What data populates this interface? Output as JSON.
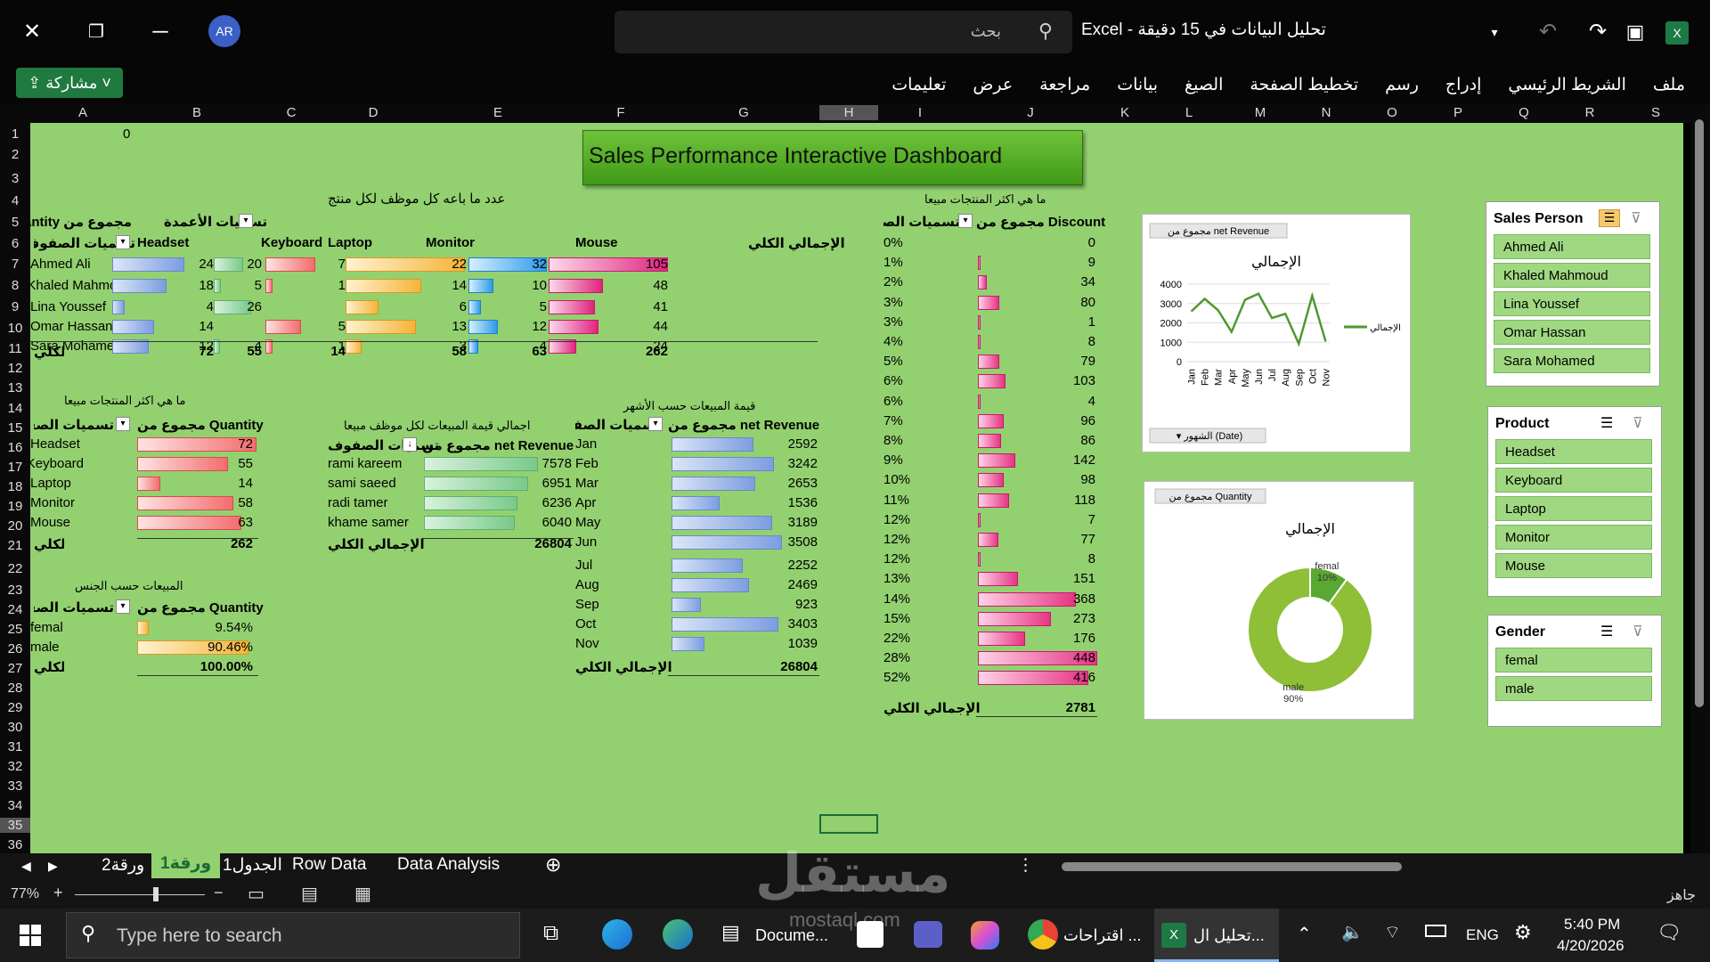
{
  "window": {
    "title": "تحليل البيانات في 15 دقيقة",
    "app": "Excel",
    "dash": "-",
    "avatar": "AR",
    "search_placeholder": "بحث",
    "share_label": "مشاركة"
  },
  "ribbon_tabs": [
    "ملف",
    "الشريط الرئيسي",
    "إدراج",
    "رسم",
    "تخطيط الصفحة",
    "الصيغ",
    "بيانات",
    "مراجعة",
    "عرض",
    "تعليمات"
  ],
  "columns": [
    "A",
    "B",
    "C",
    "D",
    "E",
    "F",
    "G",
    "H",
    "I",
    "J",
    "K",
    "L",
    "M",
    "N",
    "O",
    "P",
    "Q",
    "R",
    "S"
  ],
  "rows": [
    "1",
    "2",
    "3",
    "4",
    "5",
    "6",
    "7",
    "8",
    "9",
    "10",
    "11",
    "12",
    "13",
    "14",
    "15",
    "16",
    "17",
    "18",
    "19",
    "20",
    "21",
    "22",
    "23",
    "24",
    "25",
    "26",
    "27",
    "28",
    "29",
    "30",
    "31",
    "32",
    "33",
    "34",
    "35",
    "36"
  ],
  "cell_a1": "0",
  "dashboard_title": "Sales Performance Interactive Dashboard",
  "pivot1": {
    "caption": "عدد ما باعه كل موظف لكل منتج",
    "sum_label": "مجموع من Quantity",
    "col_label": "تسميات الأعمدة",
    "row_label": "تسميات الصفوف",
    "headers": [
      "Headset",
      "Keyboard",
      "Laptop",
      "Monitor",
      "Mouse",
      "الإجمالي الكلي"
    ],
    "rows": [
      {
        "name": "Ahmed Ali",
        "v": [
          "24",
          "20",
          "7",
          "22",
          "32",
          "105"
        ]
      },
      {
        "name": "Khaled Mahmoud",
        "v": [
          "18",
          "5",
          "1",
          "14",
          "10",
          "48"
        ]
      },
      {
        "name": "Lina Youssef",
        "v": [
          "4",
          "26",
          "",
          "6",
          "5",
          "41"
        ]
      },
      {
        "name": "Omar Hassan",
        "v": [
          "14",
          "",
          "5",
          "13",
          "12",
          "44"
        ]
      },
      {
        "name": "Sara Mohamed",
        "v": [
          "12",
          "4",
          "1",
          "3",
          "4",
          "24"
        ]
      }
    ],
    "total_label": "الإجمالي الكلي",
    "totals": [
      "72",
      "55",
      "14",
      "58",
      "63",
      "262"
    ]
  },
  "pivot2": {
    "caption": "ما هي اكثر المنتجات مبيعا",
    "row_label": "تسميات الصفوف",
    "sum_label": "مجموع من Quantity",
    "rows": [
      {
        "name": "Headset",
        "v": "72"
      },
      {
        "name": "Keyboard",
        "v": "55"
      },
      {
        "name": "Laptop",
        "v": "14"
      },
      {
        "name": "Monitor",
        "v": "58"
      },
      {
        "name": "Mouse",
        "v": "63"
      }
    ],
    "total_label": "الإجمالي الكلي",
    "total": "262"
  },
  "pivot3": {
    "caption": "اجمالي قيمة المبيعات لكل موظف مبيعا",
    "row_label": "تسميات الصفوف",
    "sum_label": "مجموع من net Revenue",
    "rows": [
      {
        "name": "rami kareem",
        "v": "7578"
      },
      {
        "name": "sami saeed",
        "v": "6951"
      },
      {
        "name": "radi tamer",
        "v": "6236"
      },
      {
        "name": "khame samer",
        "v": "6040"
      }
    ],
    "total_label": "الإجمالي الكلي",
    "total": "26804"
  },
  "pivot4": {
    "caption": "قيمة المبيعات حسب الأشهر",
    "row_label": "تسميات الصفوف",
    "sum_label": "مجموع من net Revenue",
    "rows": [
      {
        "name": "Jan",
        "v": "2592"
      },
      {
        "name": "Feb",
        "v": "3242"
      },
      {
        "name": "Mar",
        "v": "2653"
      },
      {
        "name": "Apr",
        "v": "1536"
      },
      {
        "name": "May",
        "v": "3189"
      },
      {
        "name": "Jun",
        "v": "3508"
      },
      {
        "name": "Jul",
        "v": "2252"
      },
      {
        "name": "Aug",
        "v": "2469"
      },
      {
        "name": "Sep",
        "v": "923"
      },
      {
        "name": "Oct",
        "v": "3403"
      },
      {
        "name": "Nov",
        "v": "1039"
      }
    ],
    "total_label": "الإجمالي الكلي",
    "total": "26804"
  },
  "pivot5": {
    "caption": "المبيعات حسب الجنس",
    "row_label": "تسميات الصفوف",
    "sum_label": "مجموع من Quantity",
    "rows": [
      {
        "name": "femal",
        "v": "9.54%"
      },
      {
        "name": "male",
        "v": "90.46%"
      }
    ],
    "total_label": "الإجمالي الكلي",
    "total": "100.00%"
  },
  "pivot6": {
    "caption": "ما هي اكثر المنتجات مبيعا",
    "row_label": "تسميات الصفوف",
    "sum_label": "مجموع من Discount",
    "rows": [
      {
        "name": "0%",
        "v": "0"
      },
      {
        "name": "1%",
        "v": "9"
      },
      {
        "name": "2%",
        "v": "34"
      },
      {
        "name": "3%",
        "v": "80"
      },
      {
        "name": "3%",
        "v": "1"
      },
      {
        "name": "4%",
        "v": "8"
      },
      {
        "name": "5%",
        "v": "79"
      },
      {
        "name": "6%",
        "v": "103"
      },
      {
        "name": "6%",
        "v": "4"
      },
      {
        "name": "7%",
        "v": "96"
      },
      {
        "name": "8%",
        "v": "86"
      },
      {
        "name": "9%",
        "v": "142"
      },
      {
        "name": "10%",
        "v": "98"
      },
      {
        "name": "11%",
        "v": "118"
      },
      {
        "name": "12%",
        "v": "7"
      },
      {
        "name": "12%",
        "v": "77"
      },
      {
        "name": "12%",
        "v": "8"
      },
      {
        "name": "13%",
        "v": "151"
      },
      {
        "name": "14%",
        "v": "368"
      },
      {
        "name": "15%",
        "v": "273"
      },
      {
        "name": "22%",
        "v": "176"
      },
      {
        "name": "28%",
        "v": "448"
      },
      {
        "name": "52%",
        "v": "416"
      }
    ],
    "total_label": "الإجمالي الكلي",
    "total": "2781"
  },
  "chart_data": [
    {
      "type": "line",
      "field_button": "مجموع من net Revenue",
      "title": "الإجمالي",
      "x": [
        "Jan",
        "Feb",
        "Mar",
        "Apr",
        "May",
        "Jun",
        "Jul",
        "Aug",
        "Sep",
        "Oct",
        "Nov"
      ],
      "series": [
        {
          "name": "الإجمالي",
          "values": [
            2592,
            3242,
            2653,
            1536,
            3189,
            3508,
            2252,
            2469,
            923,
            3403,
            1039
          ]
        }
      ],
      "yticks": [
        "0",
        "1000",
        "2000",
        "3000",
        "4000"
      ],
      "ylim": [
        0,
        4000
      ],
      "axis_button": "الشهور (Date)",
      "color": "#4e9a2c"
    },
    {
      "type": "pie",
      "field_button": "مجموع من Quantity",
      "title": "الإجمالي",
      "labels": [
        "femal",
        "male"
      ],
      "values": [
        10,
        90
      ],
      "label_text": [
        "femal\n10%",
        "male\n90%"
      ],
      "colors": [
        "#5aa832",
        "#8fbe37"
      ]
    }
  ],
  "slicers": [
    {
      "title": "Sales Person",
      "items": [
        "Ahmed Ali",
        "Khaled Mahmoud",
        "Lina Youssef",
        "Omar Hassan",
        "Sara Mohamed"
      ]
    },
    {
      "title": "Product",
      "items": [
        "Headset",
        "Keyboard",
        "Laptop",
        "Monitor",
        "Mouse"
      ]
    },
    {
      "title": "Gender",
      "items": [
        "femal",
        "male"
      ]
    }
  ],
  "sheet_tabs": [
    "ورقة2",
    "ورقة1",
    "الجدول1",
    "Row Data",
    "Data Analysis"
  ],
  "status": {
    "ready": "جاهز",
    "zoom": "77%"
  },
  "taskbar": {
    "search_placeholder": "Type here to search",
    "apps": [
      "Docume...",
      "اقتراحات ...",
      "تحليل ال..."
    ],
    "lang": "ENG",
    "time": "5:40 PM",
    "date": "4/20/2026"
  },
  "watermark": {
    "text": "مستقل",
    "sub": "mostaql.com"
  }
}
